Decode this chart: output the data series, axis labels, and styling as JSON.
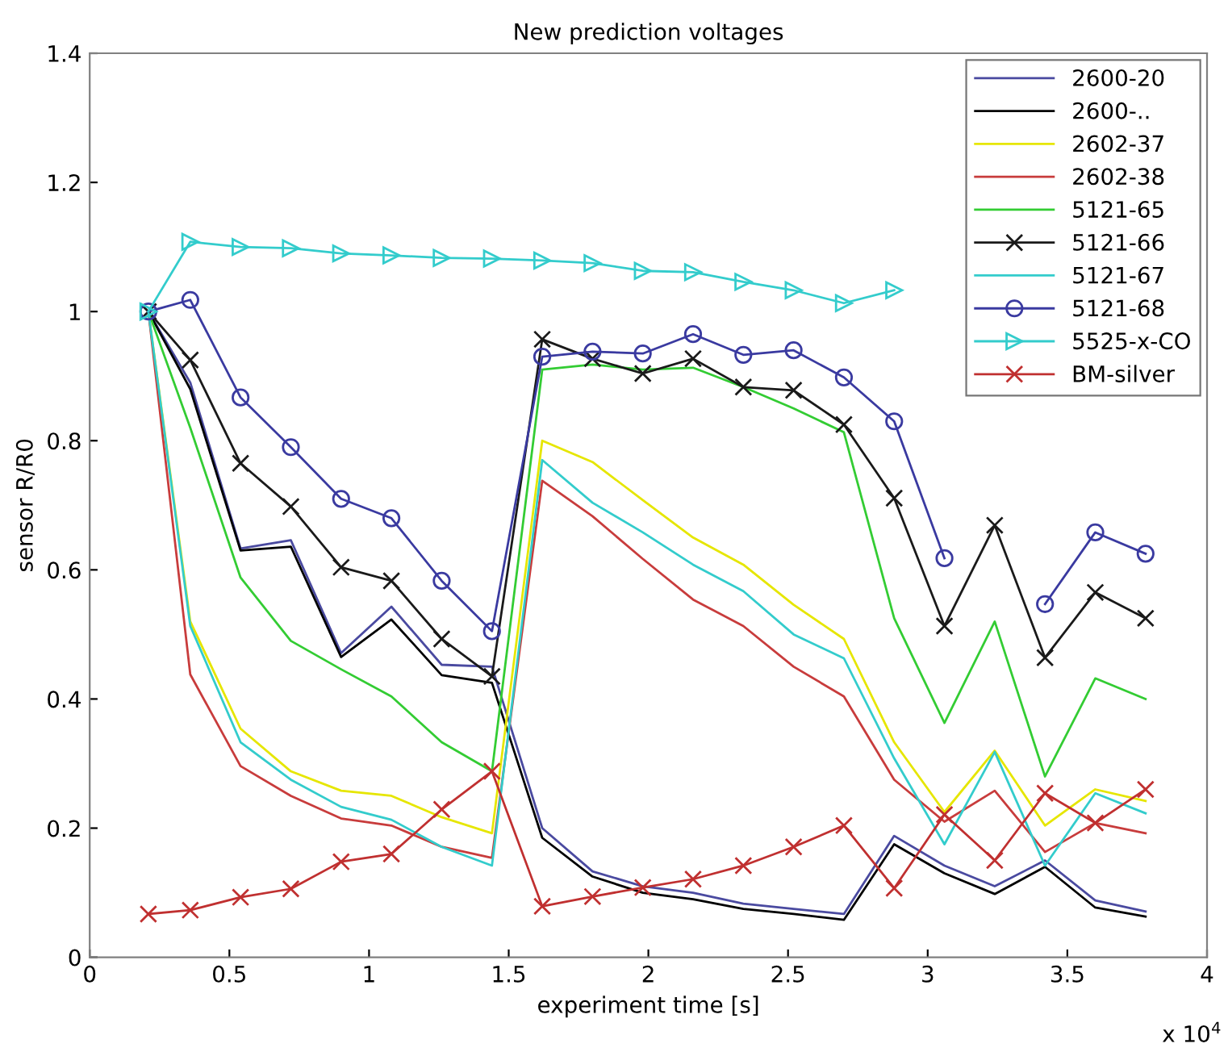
{
  "chart_data": {
    "type": "line",
    "title": "New prediction voltages",
    "xlabel": "experiment time [s]",
    "ylabel": "sensor R/R0",
    "x": [
      0.21,
      0.36,
      0.54,
      0.72,
      0.9,
      1.08,
      1.26,
      1.44,
      1.62,
      1.8,
      1.98,
      2.16,
      2.34,
      2.52,
      2.7,
      2.88,
      3.06,
      3.24,
      3.42,
      3.6,
      3.78
    ],
    "xlim": [
      0,
      4
    ],
    "xticks": [
      0,
      0.5,
      1,
      1.5,
      2,
      2.5,
      3,
      3.5,
      4
    ],
    "ylim": [
      0,
      1.4
    ],
    "yticks": [
      0,
      0.2,
      0.4,
      0.6,
      0.8,
      1,
      1.2,
      1.4
    ],
    "grid": false,
    "legend": "top right",
    "annotations": [
      "x 10$^{4}$"
    ],
    "series": [
      {
        "name": "2600-20",
        "color": "#4a4aa0",
        "marker": "none",
        "values": [
          1.0,
          0.89,
          0.633,
          0.646,
          0.471,
          0.543,
          0.453,
          0.45,
          0.2,
          0.133,
          0.11,
          0.1,
          0.083,
          0.075,
          0.067,
          0.188,
          0.142,
          0.11,
          0.15,
          0.088,
          0.071
        ]
      },
      {
        "name": "2600-..",
        "color": "#000000",
        "marker": "none",
        "values": [
          1.0,
          0.88,
          0.63,
          0.636,
          0.465,
          0.523,
          0.437,
          0.425,
          0.185,
          0.125,
          0.1,
          0.09,
          0.075,
          0.067,
          0.058,
          0.175,
          0.13,
          0.098,
          0.14,
          0.077,
          0.063
        ]
      },
      {
        "name": "2602-37",
        "color": "#e6e600",
        "marker": "none",
        "values": [
          1.0,
          0.52,
          0.354,
          0.288,
          0.258,
          0.25,
          0.217,
          0.192,
          0.8,
          0.767,
          0.708,
          0.65,
          0.608,
          0.546,
          0.493,
          0.333,
          0.225,
          0.32,
          0.204,
          0.26,
          0.242
        ]
      },
      {
        "name": "2602-38",
        "color": "#c83c3c",
        "marker": "none",
        "values": [
          1.0,
          0.438,
          0.296,
          0.25,
          0.215,
          0.204,
          0.171,
          0.154,
          0.738,
          0.683,
          0.617,
          0.554,
          0.513,
          0.45,
          0.404,
          0.275,
          0.21,
          0.258,
          0.163,
          0.208,
          0.192
        ]
      },
      {
        "name": "5121-65",
        "color": "#33cc33",
        "marker": "none",
        "values": [
          1.0,
          0.82,
          0.588,
          0.49,
          0.446,
          0.404,
          0.333,
          0.288,
          0.91,
          0.918,
          0.91,
          0.913,
          0.883,
          0.85,
          0.813,
          0.525,
          0.363,
          0.52,
          0.28,
          0.432,
          0.4
        ]
      },
      {
        "name": "5121-66",
        "color": "#1a1a1a",
        "marker": "cross",
        "values": [
          1.0,
          0.925,
          0.765,
          0.698,
          0.604,
          0.583,
          0.493,
          0.435,
          0.957,
          0.927,
          0.904,
          0.927,
          0.883,
          0.878,
          0.825,
          0.711,
          0.513,
          0.669,
          0.464,
          0.565,
          0.525
        ]
      },
      {
        "name": "5121-67",
        "color": "#33cccc",
        "marker": "none",
        "values": [
          1.0,
          0.513,
          0.333,
          0.275,
          0.233,
          0.213,
          0.171,
          0.142,
          0.77,
          0.704,
          0.658,
          0.608,
          0.567,
          0.5,
          0.463,
          0.308,
          0.175,
          0.318,
          0.142,
          0.254,
          0.223
        ]
      },
      {
        "name": "5121-68",
        "color": "#3a3aa0",
        "marker": "circle",
        "values": [
          1.0,
          1.018,
          0.867,
          0.79,
          0.71,
          0.68,
          0.583,
          0.505,
          0.93,
          0.938,
          0.935,
          0.965,
          0.933,
          0.94,
          0.898,
          0.83,
          0.618,
          null,
          0.547,
          0.658,
          0.625
        ]
      },
      {
        "name": "5525-x-CO",
        "color": "#33cccc",
        "marker": "triangle",
        "values": [
          1.0,
          1.108,
          1.1,
          1.098,
          1.09,
          1.087,
          1.083,
          1.082,
          1.079,
          1.075,
          1.063,
          1.061,
          1.046,
          1.033,
          1.013,
          1.033,
          null,
          null,
          null,
          null,
          null
        ]
      },
      {
        "name": "BM-silver",
        "color": "#c03030",
        "marker": "cross",
        "values": [
          0.067,
          0.073,
          0.093,
          0.106,
          0.148,
          0.16,
          0.229,
          0.288,
          0.079,
          0.094,
          0.108,
          0.121,
          0.142,
          0.171,
          0.204,
          0.107,
          0.221,
          0.15,
          0.254,
          0.208,
          0.26
        ]
      }
    ]
  }
}
